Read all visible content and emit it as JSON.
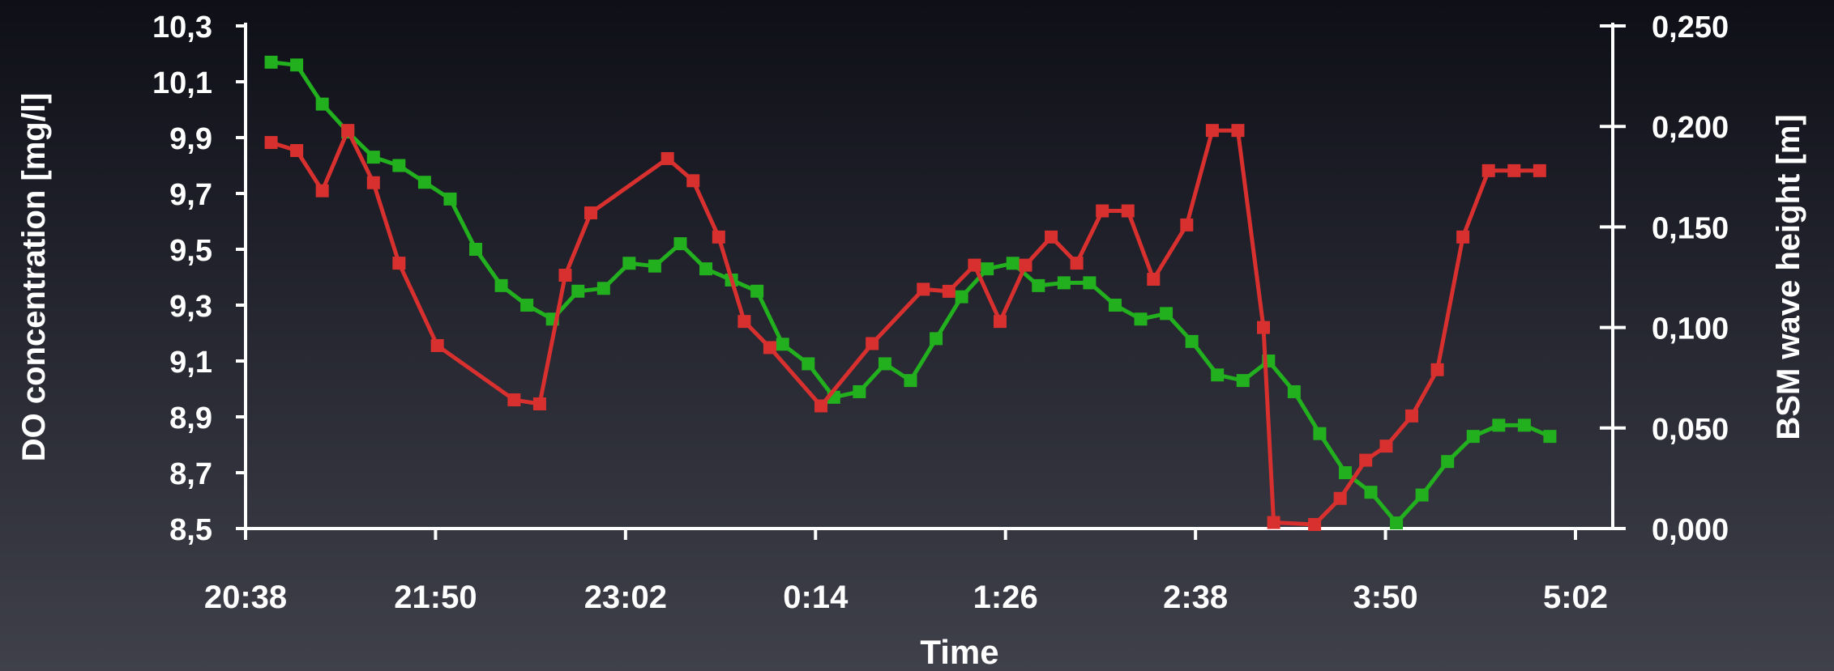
{
  "chart_data": {
    "type": "line",
    "xlabel": "Time",
    "ylabel_left": "DO concentration [mg/l]",
    "ylabel_right": "BSM wave height  [m]",
    "x_ticks": [
      "20:38",
      "21:50",
      "23:02",
      "0:14",
      "1:26",
      "2:38",
      "3:50",
      "5:02"
    ],
    "x_range_minutes": [
      0,
      520
    ],
    "y_left_ticks": [
      "8,5",
      "8,7",
      "8,9",
      "9,1",
      "9,3",
      "9,5",
      "9,7",
      "9,9",
      "10,1",
      "10,3"
    ],
    "y_left_range": [
      8.5,
      10.3
    ],
    "y_right_ticks": [
      "0,000",
      "0,050",
      "0,100",
      "0,150",
      "0,200",
      "0,250"
    ],
    "y_right_range": [
      0.0,
      0.25
    ],
    "series": [
      {
        "color": "#22b01f",
        "axis": "left",
        "x": [
          10,
          20,
          30,
          40,
          50,
          60,
          70,
          80,
          90,
          100,
          110,
          120,
          130,
          140,
          150,
          160,
          170,
          180,
          190,
          200,
          210,
          220,
          230,
          240,
          250,
          260,
          270,
          280,
          290,
          300,
          310,
          320,
          330,
          340,
          350,
          360,
          370,
          380,
          390,
          400,
          410,
          420,
          430,
          440,
          450,
          460,
          470,
          480,
          490,
          500,
          510
        ],
        "values": [
          10.17,
          10.16,
          10.02,
          9.92,
          9.83,
          9.8,
          9.74,
          9.68,
          9.5,
          9.37,
          9.3,
          9.25,
          9.35,
          9.36,
          9.45,
          9.44,
          9.52,
          9.43,
          9.39,
          9.35,
          9.16,
          9.09,
          8.97,
          8.99,
          9.09,
          9.03,
          9.18,
          9.33,
          9.43,
          9.45,
          9.37,
          9.38,
          9.38,
          9.3,
          9.25,
          9.27,
          9.17,
          9.05,
          9.03,
          9.1,
          8.99,
          8.84,
          8.7,
          8.63,
          8.52,
          8.62,
          8.74,
          8.83,
          8.87,
          8.87,
          8.83
        ]
      },
      {
        "color": "#d8302f",
        "axis": "right",
        "x": [
          10,
          20,
          30,
          40,
          50,
          60,
          75,
          105,
          115,
          125,
          135,
          165,
          175,
          185,
          195,
          205,
          225,
          245,
          265,
          275,
          285,
          295,
          305,
          315,
          325,
          335,
          345,
          355,
          368,
          378,
          388,
          398,
          402,
          418,
          428,
          438,
          446,
          456,
          466,
          476,
          486,
          496,
          506
        ],
        "values": [
          0.192,
          0.188,
          0.168,
          0.198,
          0.172,
          0.132,
          0.091,
          0.064,
          0.062,
          0.126,
          0.157,
          0.184,
          0.173,
          0.145,
          0.103,
          0.09,
          0.061,
          0.092,
          0.119,
          0.118,
          0.131,
          0.103,
          0.131,
          0.145,
          0.132,
          0.158,
          0.158,
          0.124,
          0.151,
          0.198,
          0.198,
          0.1,
          0.003,
          0.002,
          0.015,
          0.034,
          0.041,
          0.056,
          0.079,
          0.145,
          0.178,
          0.178,
          0.178
        ]
      }
    ]
  }
}
